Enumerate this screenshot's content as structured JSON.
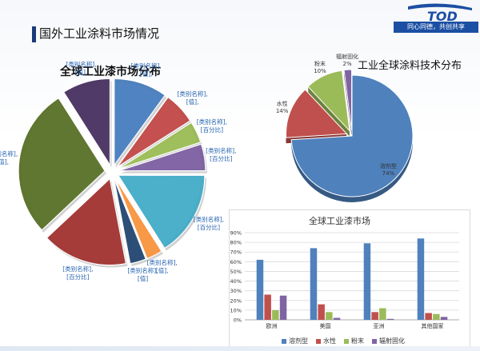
{
  "header": {
    "title": "国外工业涂料市场情况",
    "logo_text": "TOD",
    "slogan": "同心同德，共创共享"
  },
  "colors": {
    "blue": "#4f81bd",
    "red": "#c0504d",
    "green": "#9bbb59",
    "purple": "#8064a2",
    "teal": "#4bacc6",
    "orange": "#f79646",
    "navy": "#2c4d75",
    "crimson": "#a33b39",
    "olive": "#5f7530",
    "plum": "#4f3a66"
  },
  "chart_data": [
    {
      "type": "pie",
      "title": "全球工业漆市场分布",
      "style": "exploded-3d",
      "series": [
        {
          "label": "[类别名称],\n[值],",
          "value": 10,
          "color": "#4f81bd"
        },
        {
          "label": "[类别名称],\n[值],",
          "value": 6,
          "color": "#c0504d"
        },
        {
          "label": "[类别名称],\n[百分比]",
          "value": 4,
          "color": "#9bbb59"
        },
        {
          "label": "[类别名称],\n[百分比]",
          "value": 5,
          "color": "#8064a2"
        },
        {
          "label": "[类别名称],\n[百分比]",
          "value": 16,
          "color": "#4bacc6"
        },
        {
          "label": "[类别名称],\n[值],",
          "value": 3,
          "color": "#f79646"
        },
        {
          "label": "[类别名称],\n[值]",
          "value": 3,
          "color": "#2c4d75"
        },
        {
          "label": "[类别名称],\n[百分比]",
          "value": 16,
          "color": "#a33b39"
        },
        {
          "label": "[类别名称],\n[值],",
          "value": 28,
          "color": "#5f7530"
        },
        {
          "label": "[类别名称],\n[值],",
          "value": 9,
          "color": "#4f3a66"
        }
      ]
    },
    {
      "type": "pie",
      "title": "工业全球涂料技术分布",
      "series": [
        {
          "label": "溶剂型",
          "pct": "74%",
          "value": 74,
          "color": "#4f81bd"
        },
        {
          "label": "水性",
          "pct": "14%",
          "value": 14,
          "color": "#c0504d"
        },
        {
          "label": "粉末",
          "pct": "10%",
          "value": 10,
          "color": "#9bbb59"
        },
        {
          "label": "辐射固化",
          "pct": "2%",
          "value": 2,
          "color": "#8064a2"
        }
      ]
    },
    {
      "type": "bar",
      "title": "全球工业漆市场",
      "categories": [
        "欧洲",
        "美国",
        "亚洲",
        "其他国家"
      ],
      "ylim": [
        0,
        90
      ],
      "yticks": [
        "0%",
        "10%",
        "20%",
        "30%",
        "40%",
        "50%",
        "60%",
        "70%",
        "80%",
        "90%"
      ],
      "grid": true,
      "legend": "bottom",
      "series": [
        {
          "name": "溶剂型",
          "color": "#4f81bd",
          "values": [
            62,
            74,
            79,
            84
          ]
        },
        {
          "name": "水性",
          "color": "#c0504d",
          "values": [
            26,
            16,
            8,
            7
          ]
        },
        {
          "name": "粉末",
          "color": "#9bbb59",
          "values": [
            10,
            8,
            12,
            6
          ]
        },
        {
          "name": "辐射固化",
          "color": "#8064a2",
          "values": [
            25,
            2,
            1,
            3
          ]
        }
      ]
    }
  ]
}
